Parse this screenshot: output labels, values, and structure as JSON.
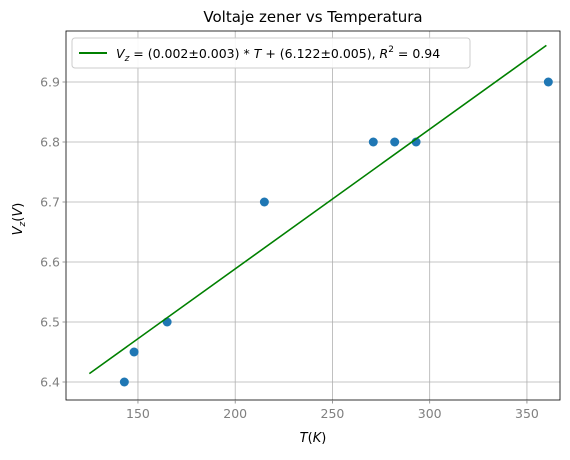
{
  "chart_data": {
    "type": "scatter",
    "title": "Voltaje zener vs Temperatura",
    "xlabel": "T(K)",
    "ylabel": "V_z(V)",
    "xlim": [
      113,
      367
    ],
    "ylim": [
      6.37,
      6.985
    ],
    "xticks": [
      150,
      200,
      250,
      300,
      350
    ],
    "yticks": [
      6.4,
      6.5,
      6.6,
      6.7,
      6.8,
      6.9
    ],
    "xtick_labels": [
      "150",
      "200",
      "250",
      "300",
      "350"
    ],
    "ytick_labels": [
      "6.4",
      "6.5",
      "6.6",
      "6.7",
      "6.8",
      "6.9"
    ],
    "grid": true,
    "legend_position": "top-left",
    "series": [
      {
        "kind": "scatter",
        "color": "#1f77b4",
        "x": [
          143,
          148,
          165,
          215,
          271,
          282,
          293,
          361
        ],
        "y": [
          6.4,
          6.45,
          6.5,
          6.7,
          6.8,
          6.8,
          6.8,
          6.9
        ]
      },
      {
        "kind": "line",
        "name": "V_z = (0.002±0.003) * T + (6.122±0.005), R² = 0.94",
        "color": "#008000",
        "x": [
          125,
          360
        ],
        "y": [
          6.414,
          6.961
        ]
      }
    ]
  }
}
